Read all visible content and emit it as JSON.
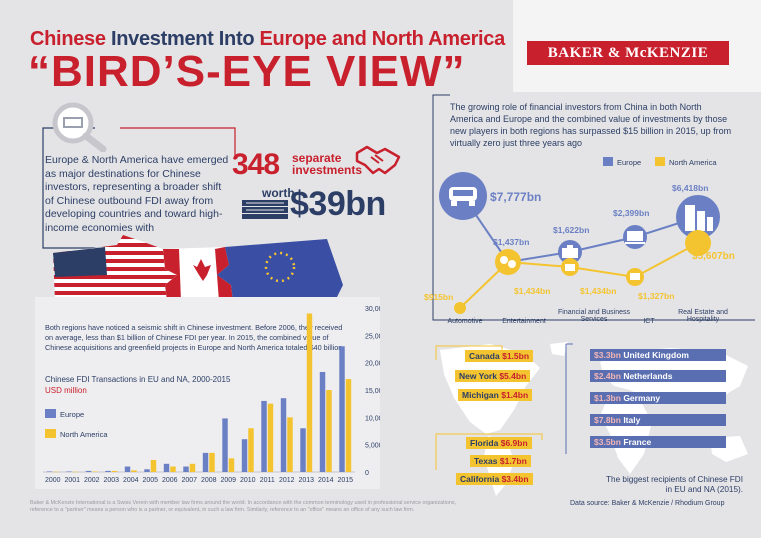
{
  "header": {
    "title_part1": "Chinese",
    "title_part2": " Investment Into ",
    "title_part3": "Europe and North America",
    "headline": "“BIRD’S-EYE VIEW”",
    "logo": "BAKER & McKENZIE"
  },
  "intro": {
    "text": "Europe & North America have emerged as major destinations for Chinese investors, representing a broader shift of Chinese outbound FDI away from developing countries and toward high-income economies with",
    "count": "348",
    "count_label_line1": "separate",
    "count_label_line2": "investments",
    "worth_label": "worth",
    "worth_value": "$39bn"
  },
  "chart_section": {
    "description": "Both regions have noticed a seismic shift in Chinese investment. Before 2006, they received on average, less than $1 billion of Chinese FDI per year. In 2015, the combined value of Chinese acquisitions and greenfield projects in Europe and North America totaled $40 billion.",
    "chart_title": "Chinese FDI Transactions in EU and NA, 2000-2015",
    "chart_unit": "USD million"
  },
  "chart_data": {
    "type": "bar",
    "title": "Chinese FDI Transactions in EU and NA, 2000-2015",
    "ylabel": "USD million",
    "categories": [
      "2000",
      "2001",
      "2002",
      "2003",
      "2004",
      "2005",
      "2006",
      "2007",
      "2008",
      "2009",
      "2010",
      "2011",
      "2012",
      "2013",
      "2014",
      "2015"
    ],
    "series": [
      {
        "name": "Europe",
        "values": [
          100,
          100,
          200,
          200,
          1000,
          500,
          1500,
          1000,
          3500,
          9800,
          6000,
          13000,
          13500,
          8000,
          18300,
          23000
        ]
      },
      {
        "name": "North America",
        "values": [
          50,
          50,
          100,
          200,
          300,
          2200,
          1000,
          1500,
          3500,
          2500,
          8000,
          12500,
          10000,
          29000,
          15000,
          17000
        ]
      }
    ],
    "yticks": [
      "0",
      "5,000",
      "10,000",
      "15,000",
      "20,000",
      "25,000",
      "30,000"
    ],
    "ylim": [
      0,
      30000
    ],
    "legend_position": "left",
    "colors": {
      "Europe": "#6b80c4",
      "North America": "#f4c430"
    }
  },
  "sectors": {
    "text": "The growing role of financial investors from China in both North America and Europe and the combined value of investments by those new players in both regions has surpassed $15 billion in 2015, up from virtually zero just three years ago",
    "legend_europe": "Europe",
    "legend_na": "North America",
    "items": [
      {
        "label": "Automotive",
        "europe": "$7,777bn",
        "na": "$915bn"
      },
      {
        "label": "Entertainment",
        "europe": "$1,437bn",
        "na": "$1,434bn"
      },
      {
        "label": "Financial and Business Services",
        "europe": "$1,622bn",
        "na": "$1,434bn"
      },
      {
        "label": "ICT",
        "europe": "$2,399bn",
        "na": "$1,327bn"
      },
      {
        "label": "Real Estate and Hospitality",
        "europe": "$6,418bn",
        "na": "$5,607bn"
      }
    ]
  },
  "map": {
    "na_locations": [
      {
        "name": "Canada",
        "value": "$1.5bn"
      },
      {
        "name": "New York",
        "value": "$5.4bn"
      },
      {
        "name": "Michigan",
        "value": "$1.4bn"
      },
      {
        "name": "Florida",
        "value": "$6.9bn"
      },
      {
        "name": "Texas",
        "value": "$1.7bn"
      },
      {
        "name": "California",
        "value": "$3.4bn"
      }
    ],
    "eu_locations": [
      {
        "name": "United Kingdom",
        "value": "$3.3bn"
      },
      {
        "name": "Netherlands",
        "value": "$2.4bn"
      },
      {
        "name": "Germany",
        "value": "$1.3bn"
      },
      {
        "name": "Italy",
        "value": "$7.8bn"
      },
      {
        "name": "France",
        "value": "$3.5bn"
      }
    ],
    "note": "The biggest recipients of Chinese FDI in EU and NA (2015).",
    "source": "Data source: Baker & McKenzie / Rhodium Group"
  },
  "footer": "Baker & McKenzie International is a Swiss Verein with member law firms around the world. In accordance with the common terminology used in professional service organizations, reference to a \"partner\" means a person who is a partner, or equivalent, in such a law firm. Similarly, reference to an \"office\" means an office of any such law firm."
}
